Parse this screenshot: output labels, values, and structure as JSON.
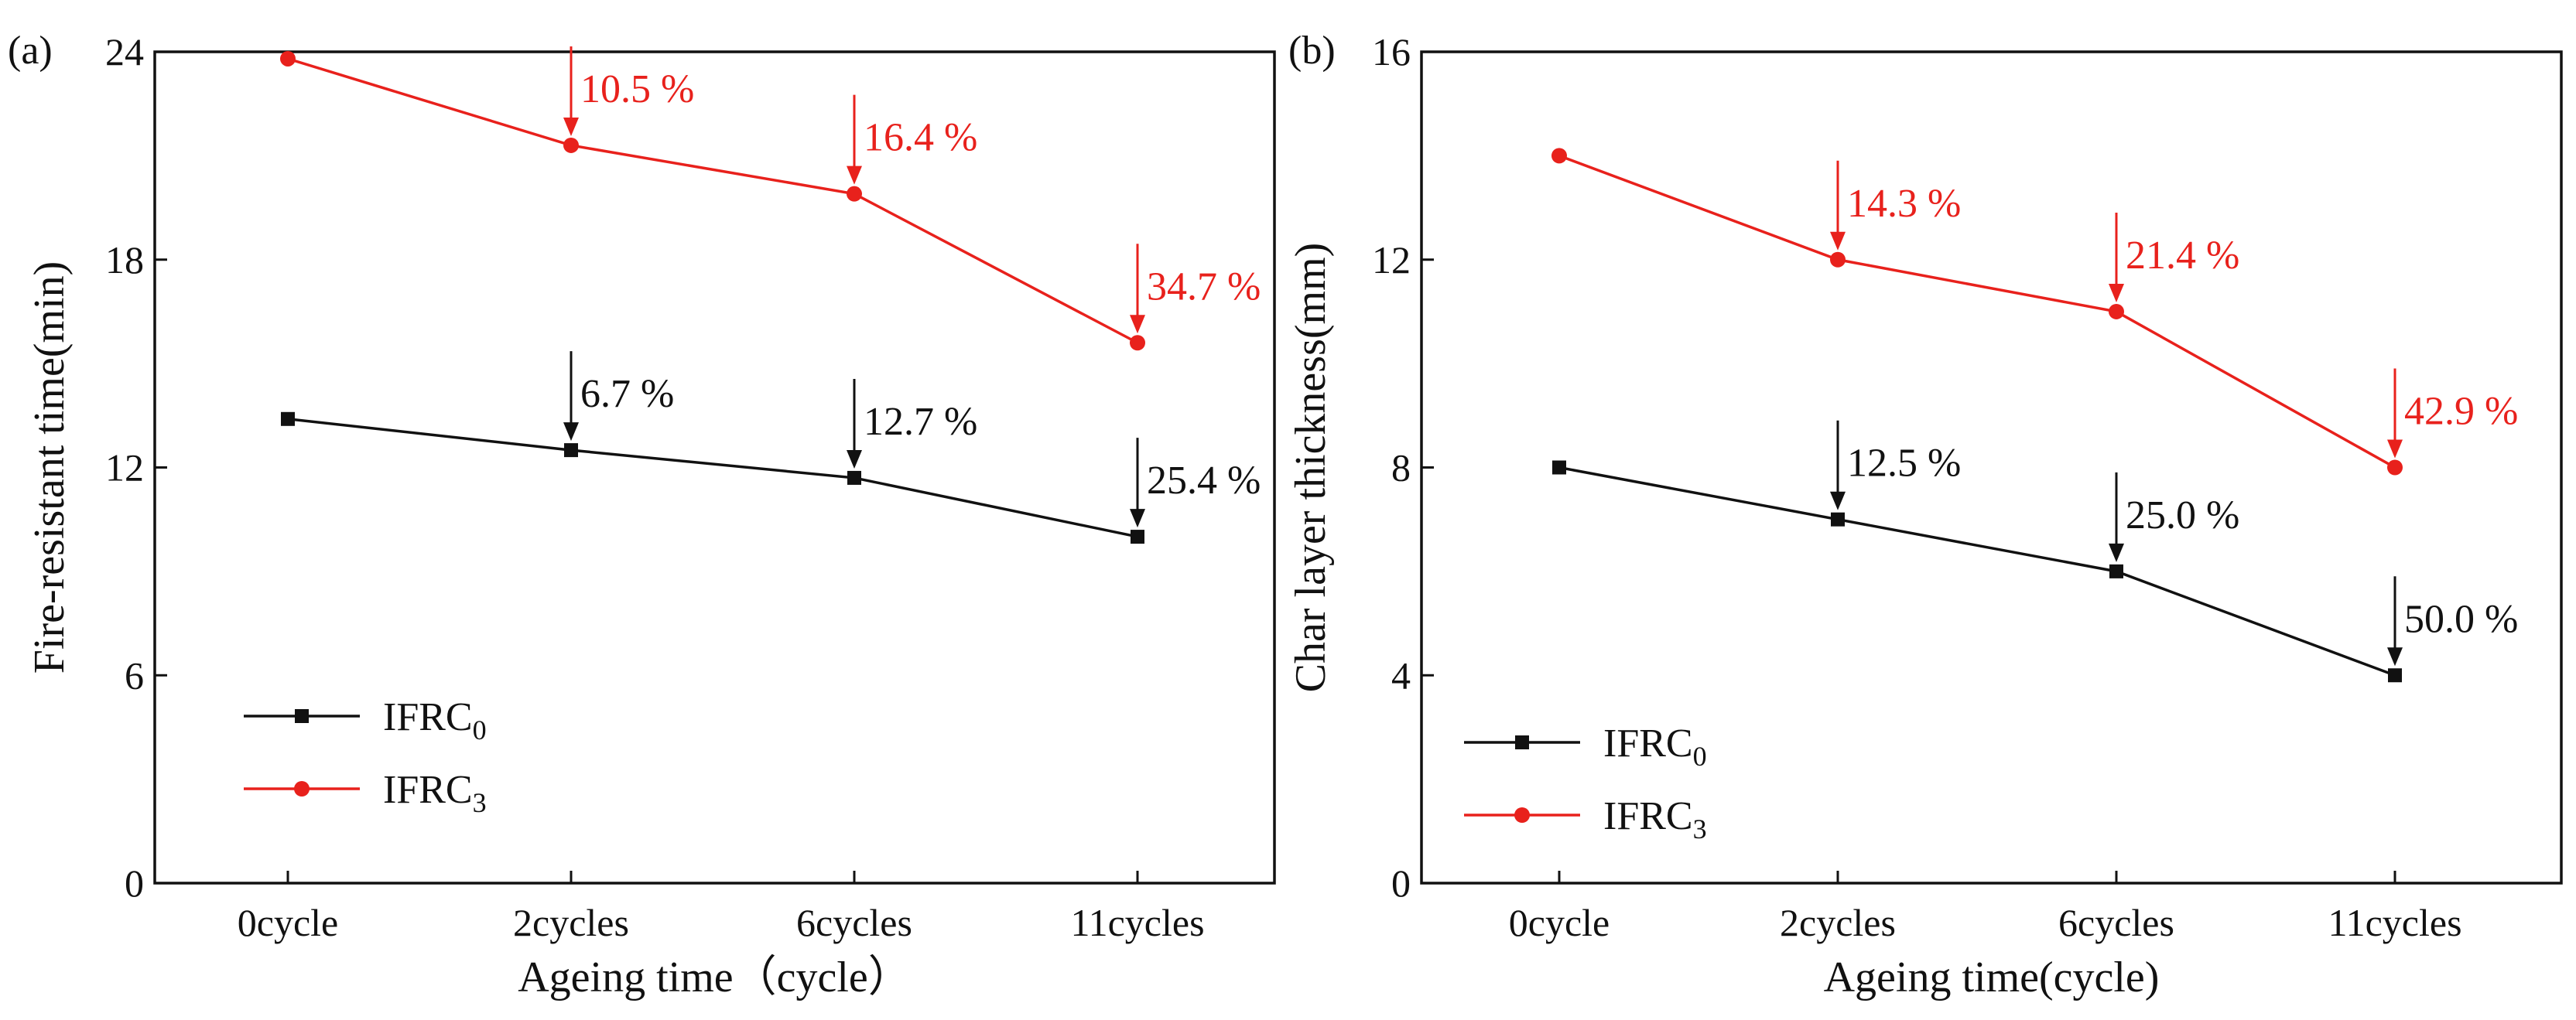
{
  "chart_data": [
    {
      "type": "line",
      "panel_label": "(a)",
      "title": "",
      "xlabel": "Ageing time（cycle）",
      "ylabel": "Fire-resistant time(min)",
      "categories": [
        "0cycle",
        "2cycles",
        "6cycles",
        "11cycles"
      ],
      "ylim": [
        0,
        24
      ],
      "yticks": [
        0,
        6,
        12,
        18,
        24
      ],
      "grid": false,
      "legend_position": "bottom-left",
      "series": [
        {
          "name": "IFRC0",
          "legend_base": "IFRC",
          "legend_sub": "0",
          "color": "#111111",
          "marker": "square",
          "values": [
            13.4,
            12.5,
            11.7,
            10.0
          ],
          "annotations": [
            "",
            "6.7 %",
            "12.7 %",
            "25.4 %"
          ]
        },
        {
          "name": "IFRC3",
          "legend_base": "IFRC",
          "legend_sub": "3",
          "color": "#e8211c",
          "marker": "circle",
          "values": [
            23.8,
            21.3,
            19.9,
            15.6
          ],
          "annotations": [
            "",
            "10.5 %",
            "16.4 %",
            "34.7 %"
          ]
        }
      ]
    },
    {
      "type": "line",
      "panel_label": "(b)",
      "title": "",
      "xlabel": "Ageing time(cycle)",
      "ylabel": "Char layer thickness(mm)",
      "categories": [
        "0cycle",
        "2cycles",
        "6cycles",
        "11cycles"
      ],
      "ylim": [
        0,
        16
      ],
      "yticks": [
        0,
        4,
        8,
        12,
        16
      ],
      "grid": false,
      "legend_position": "bottom-left",
      "series": [
        {
          "name": "IFRC0",
          "legend_base": "IFRC",
          "legend_sub": "0",
          "color": "#111111",
          "marker": "square",
          "values": [
            8,
            7,
            6,
            4
          ],
          "annotations": [
            "",
            "12.5 %",
            "25.0 %",
            "50.0 %"
          ]
        },
        {
          "name": "IFRC3",
          "legend_base": "IFRC",
          "legend_sub": "3",
          "color": "#e8211c",
          "marker": "circle",
          "values": [
            14,
            12,
            11,
            8
          ],
          "annotations": [
            "",
            "14.3 %",
            "21.4 %",
            "42.9 %"
          ]
        }
      ]
    }
  ]
}
